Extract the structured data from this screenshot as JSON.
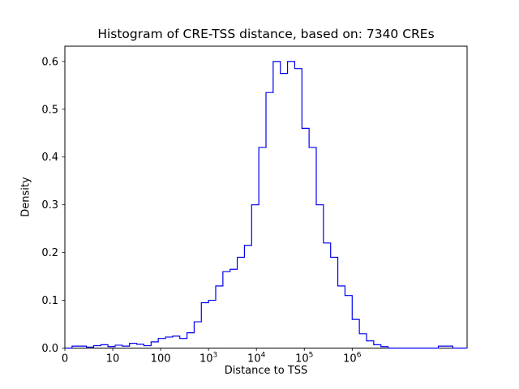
{
  "figure": {
    "background": "#ffffff"
  },
  "chart_data": {
    "type": "histogram-step",
    "title": "Histogram of CRE-TSS distance, based on: 7340 CREs",
    "xlabel": "Distance to TSS",
    "ylabel": "Density",
    "n_cres": 7340,
    "line_color": "#0000ee",
    "axis_color": "#000000",
    "x_scale": "log10, left edge labeled 0",
    "xlim_log10": [
      0,
      8.4
    ],
    "ylim": [
      0,
      0.632
    ],
    "bin_start_log10": 0,
    "bin_width_log10": 0.15,
    "densities": [
      0.0,
      0.004,
      0.004,
      0.002,
      0.005,
      0.007,
      0.003,
      0.006,
      0.004,
      0.01,
      0.008,
      0.005,
      0.013,
      0.02,
      0.023,
      0.025,
      0.02,
      0.032,
      0.055,
      0.095,
      0.1,
      0.13,
      0.16,
      0.165,
      0.19,
      0.215,
      0.3,
      0.42,
      0.535,
      0.6,
      0.575,
      0.6,
      0.585,
      0.46,
      0.42,
      0.3,
      0.22,
      0.19,
      0.13,
      0.11,
      0.06,
      0.03,
      0.015,
      0.007,
      0.003,
      0.0,
      0.0,
      0.0,
      0.0,
      0.0,
      0.0,
      0.0,
      0.004,
      0.004,
      0.0,
      0.0
    ],
    "xticks": [
      {
        "u": 0,
        "base": "0",
        "exp": null
      },
      {
        "u": 1,
        "base": "10",
        "exp": null
      },
      {
        "u": 2,
        "base": "100",
        "exp": null
      },
      {
        "u": 3,
        "base": "10",
        "exp": "3"
      },
      {
        "u": 4,
        "base": "10",
        "exp": "4"
      },
      {
        "u": 5,
        "base": "10",
        "exp": "5"
      },
      {
        "u": 6,
        "base": "10",
        "exp": "6"
      }
    ],
    "yticks": [
      {
        "v": 0.0,
        "label": "0.0"
      },
      {
        "v": 0.1,
        "label": "0.1"
      },
      {
        "v": 0.2,
        "label": "0.2"
      },
      {
        "v": 0.3,
        "label": "0.3"
      },
      {
        "v": 0.4,
        "label": "0.4"
      },
      {
        "v": 0.5,
        "label": "0.5"
      },
      {
        "v": 0.6,
        "label": "0.6"
      }
    ],
    "legend": null,
    "grid": false
  }
}
